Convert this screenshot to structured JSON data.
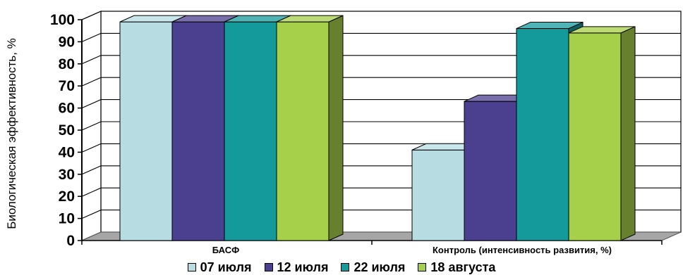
{
  "chart_data": {
    "type": "bar",
    "ylabel": "Биологическая эффективность, %",
    "ylim": [
      0,
      100
    ],
    "yticks": [
      "0",
      "10",
      "20",
      "30",
      "40",
      "50",
      "60",
      "70",
      "80",
      "90",
      "100"
    ],
    "categories": [
      "БАСФ",
      "Контроль (интенсивность развития, %)"
    ],
    "series": [
      {
        "name": "07 июля",
        "color": "#b7dde3",
        "values": [
          99,
          41
        ]
      },
      {
        "name": "12 июля",
        "color": "#4b3f8f",
        "values": [
          99,
          63
        ]
      },
      {
        "name": "22 июля",
        "color": "#159a9c",
        "values": [
          99,
          96
        ]
      },
      {
        "name": "18 августа",
        "color": "#a6cf4a",
        "values": [
          99,
          94
        ]
      }
    ],
    "grid": true,
    "legend_position": "bottom",
    "style": "3d-column"
  }
}
